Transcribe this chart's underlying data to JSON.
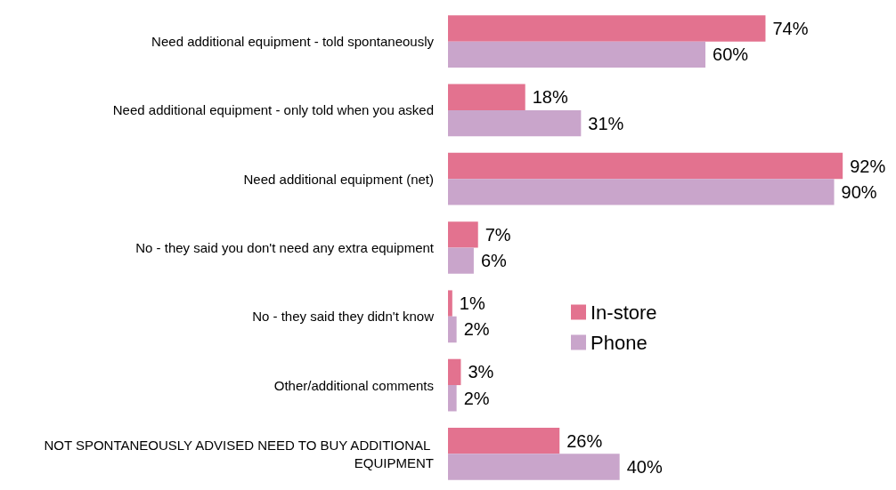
{
  "chart_data": {
    "type": "bar",
    "orientation": "horizontal",
    "categories": [
      "Need additional equipment - told spontaneously",
      "Need additional equipment - only told when you asked",
      "Need additional equipment (net)",
      "No - they said you don't need any extra equipment",
      "No - they said they didn't know",
      "Other/additional comments",
      "NOT SPONTANEOUSLY ADVISED NEED TO BUY ADDITIONAL EQUIPMENT"
    ],
    "series": [
      {
        "name": "In-store",
        "color": "#e3728f",
        "values": [
          74,
          18,
          92,
          7,
          1,
          3,
          26
        ],
        "value_labels": [
          "74%",
          "18%",
          "92%",
          "7%",
          "1%",
          "3%",
          "26%"
        ]
      },
      {
        "name": "Phone",
        "color": "#c9a5cb",
        "values": [
          60,
          31,
          90,
          6,
          2,
          2,
          40
        ],
        "value_labels": [
          "60%",
          "31%",
          "90%",
          "6%",
          "2%",
          "2%",
          "40%"
        ]
      }
    ],
    "legend": "bottom left",
    "grid": false
  }
}
